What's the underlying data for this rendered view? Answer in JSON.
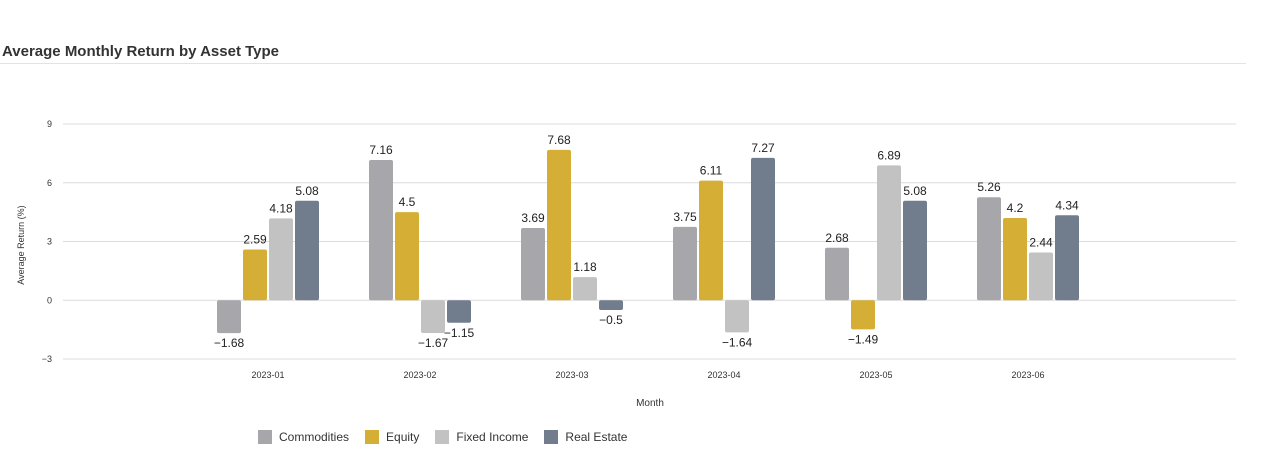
{
  "title": "Average Monthly Return by Asset Type",
  "chart_data": {
    "type": "bar",
    "categories": [
      "2023-01",
      "2023-02",
      "2023-03",
      "2023-04",
      "2023-05",
      "2023-06"
    ],
    "series": [
      {
        "name": "Commodities",
        "color": "#a6a6ab",
        "values": [
          -1.68,
          7.16,
          3.69,
          3.75,
          2.68,
          5.26
        ]
      },
      {
        "name": "Equity",
        "color": "#d4ae35",
        "values": [
          2.59,
          4.5,
          7.68,
          6.11,
          -1.49,
          4.2
        ]
      },
      {
        "name": "Fixed Income",
        "color": "#c2c2c2",
        "values": [
          4.18,
          -1.67,
          1.18,
          -1.64,
          6.89,
          2.44
        ]
      },
      {
        "name": "Real Estate",
        "color": "#717d8d",
        "values": [
          5.08,
          -1.15,
          -0.5,
          7.27,
          5.08,
          4.34
        ]
      }
    ],
    "xlabel": "Month",
    "ylabel": "Average Return (%)",
    "ylim": [
      -3,
      9
    ],
    "yticks": [
      -3,
      0,
      3,
      6,
      9
    ],
    "ytick_labels": [
      "−3",
      "0",
      "3",
      "6",
      "9"
    ],
    "grid": true,
    "legend_position": "bottom-left"
  }
}
